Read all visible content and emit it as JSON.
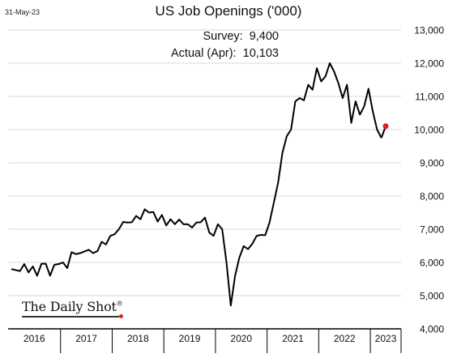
{
  "date_stamp": "31-May-23",
  "logo_text": "The Daily Shot",
  "logo_mark": "®",
  "annotations": {
    "survey": "Survey:  9,400",
    "actual": "Actual (Apr):  10,103"
  },
  "colors": {
    "line": "#000000",
    "highlight_point": "#e02020",
    "grid": "#d9d9d9"
  },
  "chart_data": {
    "type": "line",
    "title": "US Job Openings ('000)",
    "xlabel": "",
    "ylabel": "",
    "ylim": [
      4000,
      13000
    ],
    "y_ticks": [
      4000,
      5000,
      6000,
      7000,
      8000,
      9000,
      10000,
      11000,
      12000,
      13000
    ],
    "y_tick_labels": [
      "4,000",
      "5,000",
      "6,000",
      "7,000",
      "8,000",
      "9,000",
      "10,000",
      "11,000",
      "12,000",
      "13,000"
    ],
    "x_year_labels": [
      "2016",
      "2017",
      "2018",
      "2019",
      "2020",
      "2021",
      "2022",
      "2023"
    ],
    "xlim": [
      "2016-01",
      "2023-04"
    ],
    "grid": "horizontal",
    "legend": "none",
    "series": [
      {
        "x": [
          "2016-01",
          "2016-02",
          "2016-03",
          "2016-04",
          "2016-05",
          "2016-06",
          "2016-07",
          "2016-08",
          "2016-09",
          "2016-10",
          "2016-11",
          "2016-12",
          "2017-01",
          "2017-02",
          "2017-03",
          "2017-04",
          "2017-05",
          "2017-06",
          "2017-07",
          "2017-08",
          "2017-09",
          "2017-10",
          "2017-11",
          "2017-12",
          "2018-01",
          "2018-02",
          "2018-03",
          "2018-04",
          "2018-05",
          "2018-06",
          "2018-07",
          "2018-08",
          "2018-09",
          "2018-10",
          "2018-11",
          "2018-12",
          "2019-01",
          "2019-02",
          "2019-03",
          "2019-04",
          "2019-05",
          "2019-06",
          "2019-07",
          "2019-08",
          "2019-09",
          "2019-10",
          "2019-11",
          "2019-12",
          "2020-01",
          "2020-02",
          "2020-03",
          "2020-04",
          "2020-05",
          "2020-06",
          "2020-07",
          "2020-08",
          "2020-09",
          "2020-10",
          "2020-11",
          "2020-12",
          "2021-01",
          "2021-02",
          "2021-03",
          "2021-04",
          "2021-05",
          "2021-06",
          "2021-07",
          "2021-08",
          "2021-09",
          "2021-10",
          "2021-11",
          "2021-12",
          "2022-01",
          "2022-02",
          "2022-03",
          "2022-04",
          "2022-05",
          "2022-06",
          "2022-07",
          "2022-08",
          "2022-09",
          "2022-10",
          "2022-11",
          "2022-12",
          "2023-01",
          "2023-02",
          "2023-03"
        ],
        "values": [
          5800,
          5770,
          5740,
          5950,
          5700,
          5880,
          5600,
          5960,
          5960,
          5600,
          5930,
          5950,
          6000,
          5830,
          6310,
          6250,
          6280,
          6330,
          6380,
          6280,
          6340,
          6620,
          6540,
          6800,
          6850,
          7000,
          7220,
          7200,
          7210,
          7400,
          7300,
          7600,
          7500,
          7520,
          7230,
          7430,
          7110,
          7300,
          7150,
          7290,
          7150,
          7150,
          7050,
          7200,
          7210,
          7350,
          6900,
          6800,
          7150,
          7000,
          6000,
          4700,
          5600,
          6150,
          6490,
          6400,
          6560,
          6800,
          6830,
          6820,
          7200,
          7800,
          8400,
          9300,
          9800,
          10000,
          10850,
          10950,
          10880,
          11350,
          11200,
          11850,
          11450,
          11600,
          12000,
          11750,
          11400,
          10950,
          11350,
          10200,
          10850,
          10450,
          10700,
          11230,
          10550,
          10000,
          9750
        ]
      },
      {
        "x": [
          "2023-03",
          "2023-04"
        ],
        "values": [
          9750,
          10103
        ]
      }
    ],
    "highlight": {
      "x": "2023-04",
      "value": 10103
    }
  }
}
